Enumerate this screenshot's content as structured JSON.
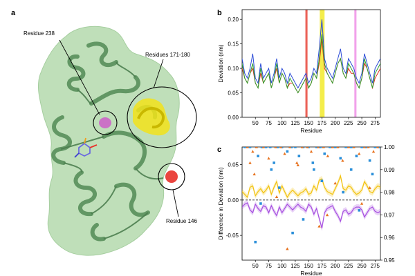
{
  "panels": {
    "a": {
      "label": "a",
      "callouts": [
        "Residue 238",
        "Residues 171-180",
        "Residue 146"
      ],
      "colors": {
        "protein": "#6b9e6b",
        "surface": "#b9dcb2",
        "yellow": "#f2e31a",
        "red": "#e8312a",
        "magenta": "#cc5fc8"
      }
    },
    "b": {
      "label": "b"
    },
    "c": {
      "label": "c"
    }
  },
  "chart_data": [
    {
      "type": "line",
      "panel": "b",
      "title": "",
      "xlabel": "Residue",
      "ylabel": "Deviation (nm)",
      "xlim": [
        25,
        285
      ],
      "ylim": [
        0.0,
        0.22
      ],
      "xticks": [
        50,
        75,
        100,
        125,
        150,
        175,
        200,
        225,
        250,
        275
      ],
      "yticks": [
        0.0,
        0.05,
        0.1,
        0.15,
        0.2
      ],
      "ytick_labels": [
        "0.00",
        "0.05",
        "0.10",
        "0.15",
        "0.20"
      ],
      "grid": false,
      "highlight_bands": [
        {
          "x": [
            144,
            148
          ],
          "color": "#e8453a"
        },
        {
          "x": [
            171,
            180
          ],
          "color": "#f2ea2a"
        },
        {
          "x": [
            236,
            240
          ],
          "color": "#ee90e6"
        }
      ],
      "x": [
        25,
        30,
        35,
        40,
        45,
        50,
        55,
        60,
        65,
        70,
        75,
        80,
        85,
        90,
        95,
        100,
        105,
        110,
        115,
        120,
        125,
        130,
        135,
        140,
        145,
        150,
        155,
        160,
        165,
        170,
        175,
        180,
        185,
        190,
        195,
        200,
        205,
        210,
        215,
        220,
        225,
        230,
        235,
        240,
        245,
        250,
        255,
        260,
        265,
        270,
        275,
        280,
        285
      ],
      "series": [
        {
          "color": "#2a4bd7",
          "values": [
            0.12,
            0.09,
            0.08,
            0.1,
            0.13,
            0.08,
            0.07,
            0.11,
            0.08,
            0.09,
            0.1,
            0.07,
            0.09,
            0.12,
            0.08,
            0.1,
            0.09,
            0.07,
            0.09,
            0.08,
            0.07,
            0.06,
            0.07,
            0.08,
            0.09,
            0.07,
            0.08,
            0.1,
            0.09,
            0.14,
            0.2,
            0.12,
            0.1,
            0.09,
            0.08,
            0.1,
            0.12,
            0.14,
            0.1,
            0.09,
            0.12,
            0.11,
            0.1,
            0.08,
            0.07,
            0.09,
            0.13,
            0.11,
            0.09,
            0.07,
            0.1,
            0.11,
            0.12
          ]
        },
        {
          "color": "#e0301e",
          "values": [
            0.1,
            0.08,
            0.07,
            0.09,
            0.1,
            0.07,
            0.06,
            0.09,
            0.07,
            0.08,
            0.09,
            0.06,
            0.08,
            0.1,
            0.07,
            0.09,
            0.08,
            0.06,
            0.07,
            0.07,
            0.06,
            0.05,
            0.06,
            0.07,
            0.08,
            0.06,
            0.07,
            0.09,
            0.08,
            0.11,
            0.16,
            0.1,
            0.09,
            0.08,
            0.07,
            0.09,
            0.11,
            0.12,
            0.09,
            0.08,
            0.1,
            0.09,
            0.09,
            0.07,
            0.06,
            0.08,
            0.11,
            0.1,
            0.08,
            0.06,
            0.08,
            0.09,
            0.1
          ]
        },
        {
          "color": "#2ea02e",
          "values": [
            0.11,
            0.08,
            0.07,
            0.09,
            0.11,
            0.07,
            0.06,
            0.1,
            0.07,
            0.08,
            0.09,
            0.06,
            0.08,
            0.11,
            0.07,
            0.09,
            0.08,
            0.06,
            0.08,
            0.07,
            0.06,
            0.05,
            0.06,
            0.07,
            0.08,
            0.06,
            0.07,
            0.09,
            0.08,
            0.12,
            0.17,
            0.11,
            0.09,
            0.08,
            0.07,
            0.09,
            0.11,
            0.12,
            0.09,
            0.08,
            0.11,
            0.1,
            0.09,
            0.07,
            0.06,
            0.08,
            0.12,
            0.1,
            0.08,
            0.06,
            0.09,
            0.1,
            0.11
          ]
        }
      ]
    },
    {
      "type": "line",
      "panel": "c",
      "title": "",
      "xlabel": "Residue",
      "ylabel": "Difference in Deviation (nm)",
      "xlim": [
        25,
        285
      ],
      "ylim": [
        -0.085,
        0.075
      ],
      "xticks": [
        50,
        75,
        100,
        125,
        150,
        175,
        200,
        225,
        250,
        275
      ],
      "yticks": [
        -0.05,
        0.0,
        0.05
      ],
      "ytick_labels": [
        "-0.05",
        "0.00",
        "0.05"
      ],
      "y2lim": [
        0.95,
        1.0
      ],
      "y2ticks": [
        0.95,
        0.96,
        0.97,
        0.98,
        0.99,
        1.0
      ],
      "y2tick_labels": [
        "0.95",
        "0.96",
        "0.97",
        "0.98",
        "0.99",
        "1.00"
      ],
      "zero_line": true,
      "grid": false,
      "x": [
        25,
        30,
        35,
        40,
        45,
        50,
        55,
        60,
        65,
        70,
        75,
        80,
        85,
        90,
        95,
        100,
        105,
        110,
        115,
        120,
        125,
        130,
        135,
        140,
        145,
        150,
        155,
        160,
        165,
        170,
        175,
        180,
        185,
        190,
        195,
        200,
        205,
        210,
        215,
        220,
        225,
        230,
        235,
        240,
        245,
        250,
        255,
        260,
        265,
        270,
        275,
        280,
        285
      ],
      "series": [
        {
          "color": "#f2c20e",
          "values": [
            0.012,
            0.008,
            0.004,
            0.018,
            0.02,
            0.006,
            0.012,
            0.016,
            0.01,
            0.014,
            0.02,
            0.008,
            0.018,
            0.026,
            0.01,
            0.02,
            0.012,
            0.004,
            0.01,
            0.014,
            0.01,
            0.006,
            0.01,
            0.012,
            0.016,
            0.008,
            0.01,
            0.02,
            0.014,
            0.028,
            0.03,
            0.018,
            0.012,
            0.01,
            0.008,
            0.016,
            0.024,
            0.034,
            0.016,
            0.014,
            0.02,
            0.018,
            0.012,
            0.008,
            0.01,
            0.014,
            0.026,
            0.02,
            0.012,
            0.01,
            0.016,
            0.02,
            0.018
          ]
        },
        {
          "color": "#a64ee0",
          "values": [
            -0.01,
            -0.006,
            -0.004,
            -0.014,
            -0.018,
            -0.006,
            -0.012,
            -0.016,
            -0.008,
            -0.01,
            -0.018,
            -0.008,
            -0.016,
            -0.022,
            -0.01,
            -0.018,
            -0.012,
            -0.006,
            -0.01,
            -0.014,
            -0.01,
            -0.006,
            -0.01,
            -0.012,
            -0.016,
            -0.006,
            -0.01,
            -0.02,
            -0.012,
            -0.026,
            -0.04,
            -0.018,
            -0.012,
            -0.01,
            -0.008,
            -0.016,
            -0.022,
            -0.03,
            -0.016,
            -0.014,
            -0.02,
            -0.018,
            -0.012,
            -0.01,
            -0.01,
            -0.014,
            -0.024,
            -0.018,
            -0.012,
            -0.01,
            -0.016,
            -0.018,
            -0.016
          ]
        }
      ],
      "scatter": [
        {
          "marker": "square",
          "color": "#2b8fd9",
          "axis": "right",
          "points": [
            [
              30,
              1.0
            ],
            [
              40,
              1.0
            ],
            [
              55,
              0.996
            ],
            [
              62,
              1.0
            ],
            [
              70,
              1.0
            ],
            [
              78,
              1.0
            ],
            [
              85,
              0.993
            ],
            [
              92,
              1.0
            ],
            [
              100,
              1.0
            ],
            [
              110,
              0.998
            ],
            [
              118,
              1.0
            ],
            [
              125,
              1.0
            ],
            [
              132,
              0.996
            ],
            [
              140,
              1.0
            ],
            [
              150,
              1.0
            ],
            [
              158,
              0.993
            ],
            [
              165,
              1.0
            ],
            [
              172,
              1.0
            ],
            [
              180,
              0.997
            ],
            [
              190,
              1.0
            ],
            [
              200,
              1.0
            ],
            [
              210,
              0.995
            ],
            [
              220,
              1.0
            ],
            [
              230,
              1.0
            ],
            [
              240,
              0.996
            ],
            [
              250,
              1.0
            ],
            [
              258,
              1.0
            ],
            [
              265,
              0.994
            ],
            [
              275,
              1.0
            ],
            [
              282,
              1.0
            ],
            [
              60,
              0.975
            ],
            [
              95,
              0.982
            ],
            [
              140,
              0.968
            ],
            [
              175,
              0.985
            ],
            [
              215,
              0.98
            ],
            [
              245,
              0.972
            ],
            [
              270,
              0.988
            ],
            [
              50,
              0.958
            ],
            [
              120,
              0.962
            ],
            [
              230,
              0.99
            ],
            [
              80,
              0.99
            ],
            [
              160,
              0.99
            ]
          ]
        },
        {
          "marker": "triangle",
          "color": "#e7721f",
          "axis": "right",
          "points": [
            [
              35,
              1.0
            ],
            [
              45,
              0.998
            ],
            [
              52,
              1.0
            ],
            [
              65,
              1.0
            ],
            [
              75,
              0.995
            ],
            [
              88,
              1.0
            ],
            [
              98,
              1.0
            ],
            [
              105,
              0.997
            ],
            [
              115,
              1.0
            ],
            [
              128,
              0.993
            ],
            [
              138,
              1.0
            ],
            [
              148,
              1.0
            ],
            [
              155,
              0.998
            ],
            [
              168,
              1.0
            ],
            [
              178,
              1.0
            ],
            [
              186,
              0.996
            ],
            [
              195,
              1.0
            ],
            [
              205,
              1.0
            ],
            [
              214,
              0.994
            ],
            [
              225,
              1.0
            ],
            [
              235,
              1.0
            ],
            [
              245,
              0.997
            ],
            [
              255,
              1.0
            ],
            [
              262,
              1.0
            ],
            [
              272,
              0.998
            ],
            [
              280,
              1.0
            ],
            [
              48,
              0.988
            ],
            [
              90,
              0.978
            ],
            [
              130,
              0.992
            ],
            [
              170,
              0.965
            ],
            [
              200,
              0.984
            ],
            [
              250,
              0.975
            ],
            [
              110,
              0.955
            ],
            [
              185,
              0.97
            ],
            [
              40,
              0.993
            ],
            [
              265,
              0.982
            ]
          ]
        }
      ]
    }
  ]
}
